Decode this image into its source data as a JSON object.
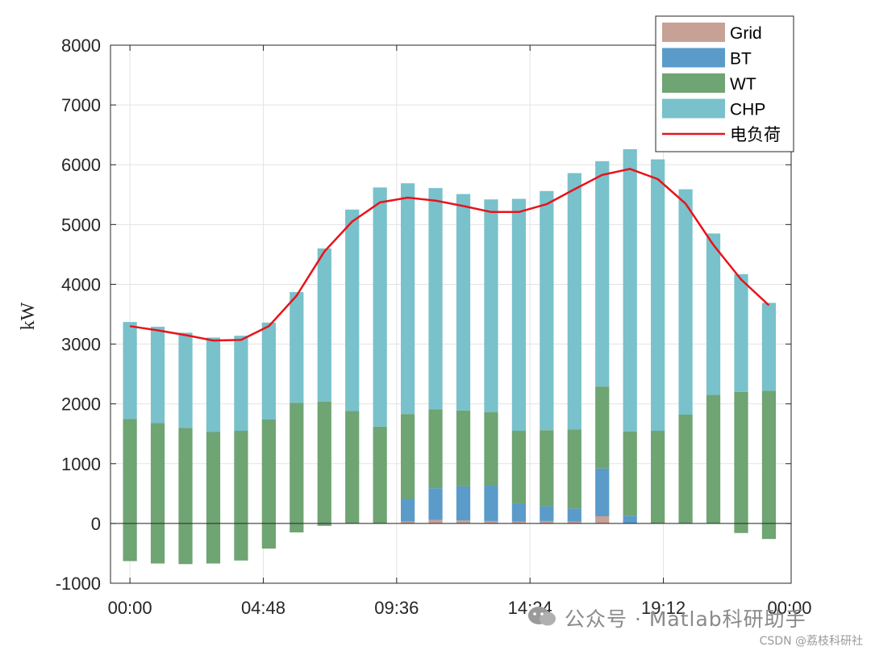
{
  "chart_data": {
    "type": "bar",
    "stacked": true,
    "ylabel": "kW",
    "xlabel": "",
    "ylim": [
      -1000,
      8000
    ],
    "yticks": [
      -1000,
      0,
      1000,
      2000,
      3000,
      4000,
      5000,
      6000,
      7000,
      8000
    ],
    "x": [
      1,
      2,
      3,
      4,
      5,
      6,
      7,
      8,
      9,
      10,
      11,
      12,
      13,
      14,
      15,
      16,
      17,
      18,
      19,
      20,
      21,
      22,
      23,
      24
    ],
    "xlim": [
      0.3,
      24.8
    ],
    "xticks": [
      {
        "pos": 1,
        "label": "00:00"
      },
      {
        "pos": 5.8,
        "label": "04:48"
      },
      {
        "pos": 10.6,
        "label": "09:36"
      },
      {
        "pos": 15.4,
        "label": "14:24"
      },
      {
        "pos": 20.2,
        "label": "19:12"
      },
      {
        "pos": 25,
        "label": "00:00"
      }
    ],
    "grid": true,
    "legend_position": "top-right",
    "series": [
      {
        "name": "Grid",
        "color": "#c8a196",
        "values": [
          0,
          0,
          0,
          0,
          0,
          0,
          0,
          0,
          0,
          0,
          30,
          60,
          50,
          40,
          30,
          40,
          30,
          120,
          0,
          0,
          0,
          0,
          0,
          0
        ]
      },
      {
        "name": "BT",
        "color": "#5a9bc9",
        "values": [
          0,
          0,
          0,
          0,
          0,
          0,
          0,
          0,
          0,
          0,
          380,
          530,
          570,
          600,
          300,
          250,
          220,
          800,
          130,
          0,
          0,
          0,
          0,
          0
        ]
      },
      {
        "name": "WT",
        "color": "#6fa473",
        "values": [
          1750,
          1680,
          1600,
          1530,
          1550,
          1740,
          2020,
          2040,
          1880,
          1620,
          1420,
          1320,
          1270,
          1220,
          1220,
          1270,
          1320,
          1370,
          1410,
          1550,
          1820,
          2150,
          2200,
          2220
        ]
      },
      {
        "name": "CHP",
        "color": "#79c1cb",
        "values": [
          1620,
          1610,
          1590,
          1580,
          1590,
          1620,
          1850,
          2560,
          3370,
          4000,
          3860,
          3700,
          3620,
          3560,
          3880,
          4000,
          4290,
          3770,
          4720,
          4540,
          3770,
          2700,
          1970,
          1470
        ]
      }
    ],
    "negative_series": {
      "name": "WT",
      "color": "#6fa473",
      "values": [
        -630,
        -670,
        -680,
        -670,
        -620,
        -420,
        -150,
        -40,
        0,
        0,
        0,
        0,
        0,
        0,
        0,
        0,
        0,
        0,
        0,
        0,
        0,
        0,
        -160,
        -260
      ]
    },
    "line": {
      "name": "电负荷",
      "color": "#e8131b",
      "values": [
        3300,
        3230,
        3150,
        3060,
        3070,
        3300,
        3810,
        4550,
        5050,
        5370,
        5450,
        5400,
        5310,
        5210,
        5210,
        5340,
        5590,
        5830,
        5930,
        5760,
        5350,
        4660,
        4080,
        3650
      ]
    }
  },
  "watermark": {
    "text": "公众号 · Matlab科研助手",
    "credit": "CSDN @荔枝科研社"
  }
}
